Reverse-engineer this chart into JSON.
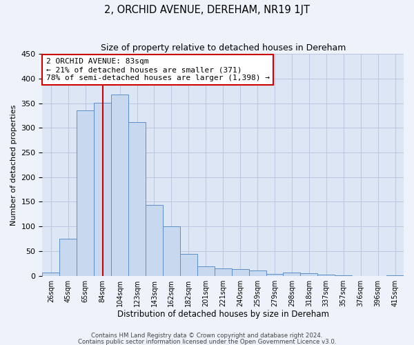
{
  "title": "2, ORCHID AVENUE, DEREHAM, NR19 1JT",
  "subtitle": "Size of property relative to detached houses in Dereham",
  "xlabel": "Distribution of detached houses by size in Dereham",
  "ylabel": "Number of detached properties",
  "bar_labels": [
    "26sqm",
    "45sqm",
    "65sqm",
    "84sqm",
    "104sqm",
    "123sqm",
    "143sqm",
    "162sqm",
    "182sqm",
    "201sqm",
    "221sqm",
    "240sqm",
    "259sqm",
    "279sqm",
    "298sqm",
    "318sqm",
    "337sqm",
    "357sqm",
    "376sqm",
    "396sqm",
    "415sqm"
  ],
  "bar_values": [
    7,
    75,
    335,
    351,
    368,
    311,
    143,
    101,
    45,
    19,
    15,
    13,
    11,
    4,
    6,
    5,
    2,
    1,
    0,
    0,
    1
  ],
  "bar_color": "#c8d9ef",
  "bar_edge_color": "#5b8fc9",
  "ylim": [
    0,
    450
  ],
  "yticks": [
    0,
    50,
    100,
    150,
    200,
    250,
    300,
    350,
    400,
    450
  ],
  "property_line_x": 3,
  "property_line_label": "2 ORCHID AVENUE: 83sqm",
  "annotation_line1": "← 21% of detached houses are smaller (371)",
  "annotation_line2": "78% of semi-detached houses are larger (1,398) →",
  "footer1": "Contains HM Land Registry data © Crown copyright and database right 2024.",
  "footer2": "Contains public sector information licensed under the Open Government Licence v3.0.",
  "background_color": "#eef2fa",
  "plot_bg_color": "#dce6f5",
  "grid_color": "#b8c8de",
  "annotation_box_color": "#ffffff",
  "annotation_box_edge": "#cc0000",
  "property_line_color": "#cc0000",
  "title_fontsize": 10.5,
  "subtitle_fontsize": 9
}
